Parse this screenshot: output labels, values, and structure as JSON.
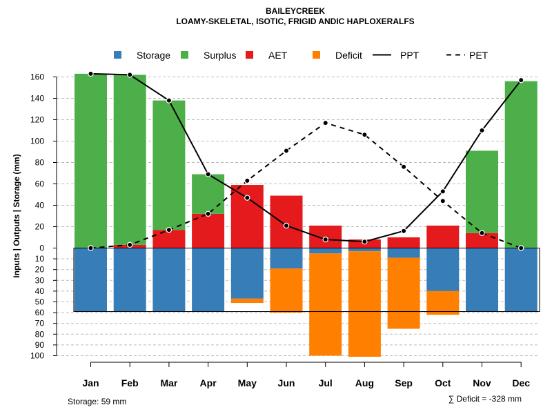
{
  "chart_data": {
    "type": "bar",
    "title": "BAILEYCREEK",
    "subtitle": "LOAMY-SKELETAL, ISOTIC, FRIGID ANDIC HAPLOXERALFS",
    "ylabel": "Inputs | Outputs | Storage    (mm)",
    "categories": [
      "Jan",
      "Feb",
      "Mar",
      "Apr",
      "May",
      "Jun",
      "Jul",
      "Aug",
      "Sep",
      "Oct",
      "Nov",
      "Dec"
    ],
    "ylim_top": [
      0,
      160
    ],
    "ylim_bottom": [
      0,
      100
    ],
    "yticks_top": [
      "0",
      "20",
      "40",
      "60",
      "80",
      "100",
      "120",
      "140",
      "160"
    ],
    "yticks_bottom": [
      "10",
      "20",
      "30",
      "40",
      "50",
      "60",
      "70",
      "80",
      "90",
      "100"
    ],
    "legend": [
      {
        "key": "storage",
        "label": "Storage",
        "kind": "square",
        "color": "#377eb8"
      },
      {
        "key": "surplus",
        "label": "Surplus",
        "kind": "square",
        "color": "#4daf4a"
      },
      {
        "key": "aet",
        "label": "AET",
        "kind": "square",
        "color": "#e41a1c"
      },
      {
        "key": "deficit",
        "label": "Deficit",
        "kind": "square",
        "color": "#ff7f00"
      },
      {
        "key": "ppt",
        "label": "PPT",
        "kind": "solid-line",
        "color": "#000000"
      },
      {
        "key": "pet",
        "label": "PET",
        "kind": "dashed-line",
        "color": "#000000"
      }
    ],
    "series": [
      {
        "name": "AET",
        "values": [
          0,
          3,
          17,
          32,
          59,
          49,
          21,
          8,
          10,
          21,
          14,
          0
        ]
      },
      {
        "name": "Surplus",
        "values": [
          163,
          159,
          121,
          37,
          0,
          0,
          0,
          0,
          0,
          0,
          77,
          156
        ]
      },
      {
        "name": "Storage",
        "values": [
          59,
          59,
          59,
          59,
          47,
          19,
          5,
          3,
          9,
          40,
          59,
          59
        ]
      },
      {
        "name": "Deficit",
        "values": [
          0,
          0,
          0,
          0,
          4,
          41,
          95,
          98,
          66,
          22,
          0,
          0
        ]
      },
      {
        "name": "PPT",
        "values": [
          163,
          162,
          138,
          69,
          47,
          21,
          8,
          6,
          16,
          53,
          110,
          157
        ]
      },
      {
        "name": "PET",
        "values": [
          0,
          3,
          17,
          32,
          63,
          91,
          117,
          106,
          76,
          44,
          14,
          0
        ]
      }
    ],
    "footer_left": "Storage: 59 mm",
    "footer_right": "∑ Deficit = -328 mm"
  }
}
